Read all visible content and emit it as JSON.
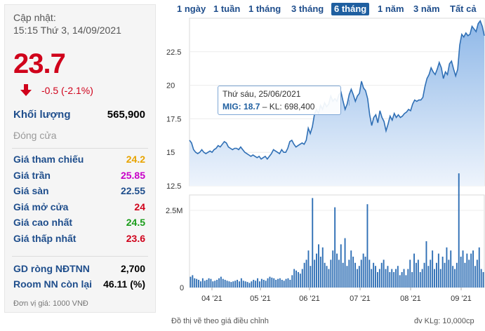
{
  "panel": {
    "updated_label": "Cập nhật:",
    "updated_time": "15:15 Thứ 3, 14/09/2021",
    "price": "23.7",
    "change": "-0.5 (-2.1%)",
    "volume_label": "Khối lượng",
    "volume_value": "565,900",
    "close_label": "Đóng cửa",
    "rows": [
      {
        "label": "Giá tham chiếu",
        "value": "24.2",
        "color": "#e8a400"
      },
      {
        "label": "Giá trần",
        "value": "25.85",
        "color": "#c800c8"
      },
      {
        "label": "Giá sàn",
        "value": "22.55",
        "color": "#1f4e8c"
      },
      {
        "label": "Giá mở cửa",
        "value": "24",
        "color": "#d0021b"
      },
      {
        "label": "Giá cao nhất",
        "value": "24.5",
        "color": "#1a9c1a"
      },
      {
        "label": "Giá thấp nhất",
        "value": "23.6",
        "color": "#d0021b"
      }
    ],
    "foreign_net_label": "GD ròng NĐTNN",
    "foreign_net_value": "2,700",
    "room_label": "Room NN còn lại",
    "room_value": "46.11 (%)",
    "unit_note": "Đơn vị giá: 1000 VNĐ"
  },
  "tabs": [
    {
      "label": "1 ngày",
      "active": false
    },
    {
      "label": "1 tuần",
      "active": false
    },
    {
      "label": "1 tháng",
      "active": false
    },
    {
      "label": "3 tháng",
      "active": false
    },
    {
      "label": "6 tháng",
      "active": true
    },
    {
      "label": "1 năm",
      "active": false
    },
    {
      "label": "3 năm",
      "active": false
    },
    {
      "label": "Tất cả",
      "active": false
    }
  ],
  "tooltip": {
    "date": "Thứ sáu, 25/06/2021",
    "symbol": "MIG:",
    "price": "18.7",
    "volume": "– KL: 698,400"
  },
  "footer": {
    "adjusted_note": "Đồ thị vẽ theo giá điều chỉnh",
    "volume_unit": "đv KLg: 10,000cp"
  },
  "chart_data": {
    "type": "area",
    "x_tick_labels": [
      "04 '21",
      "05 '21",
      "06 '21",
      "07 '21",
      "08 '21",
      "09 '21"
    ],
    "price_axis": {
      "ticks": [
        "12.5",
        "15",
        "17.5",
        "20",
        "22.5"
      ],
      "ylim": [
        12.5,
        25
      ]
    },
    "volume_axis": {
      "ticks": [
        "0",
        "2.5M"
      ],
      "ylim": [
        0,
        3000000
      ]
    },
    "colors": {
      "line": "#2f6fb5",
      "fill_top": "#8fb8e8",
      "fill_bottom": "#eef4fc",
      "volume": "#2f6fb5"
    },
    "price": [
      15.9,
      15.7,
      15.2,
      15.0,
      14.9,
      15.0,
      15.2,
      15.0,
      14.9,
      15.0,
      15.1,
      15.0,
      15.2,
      15.3,
      15.5,
      15.4,
      15.6,
      15.8,
      15.7,
      15.4,
      15.3,
      15.2,
      15.3,
      15.3,
      15.2,
      15.4,
      15.2,
      15.0,
      14.9,
      14.8,
      14.7,
      14.8,
      14.7,
      14.6,
      14.7,
      14.5,
      14.6,
      14.7,
      14.5,
      14.7,
      14.9,
      15.2,
      15.1,
      15.0,
      14.9,
      15.2,
      15.0,
      15.0,
      15.3,
      15.8,
      15.9,
      15.6,
      15.4,
      15.5,
      15.6,
      15.7,
      15.6,
      15.9,
      16.8,
      16.4,
      16.9,
      17.8,
      18.2,
      17.9,
      18.5,
      18.2,
      18.7,
      18.4,
      18.6,
      19.2,
      18.8,
      19.0,
      18.8,
      19.3,
      19.5,
      18.8,
      18.2,
      18.6,
      19.3,
      19.7,
      19.3,
      18.8,
      19.2,
      19.4,
      20.3,
      19.8,
      19.6,
      19.0,
      17.8,
      17.0,
      17.6,
      17.8,
      17.2,
      18.1,
      17.6,
      17.3,
      16.6,
      17.1,
      17.7,
      17.4,
      17.9,
      17.6,
      17.8,
      17.6,
      17.7,
      17.9,
      18.0,
      18.2,
      18.1,
      18.6,
      18.9,
      18.8,
      18.9,
      18.9,
      19.1,
      19.9,
      20.5,
      20.8,
      21.3,
      21.0,
      20.8,
      21.2,
      21.7,
      21.3,
      20.5,
      21.0,
      20.8,
      21.6,
      21.8,
      21.2,
      20.7,
      21.2,
      23.0,
      23.8,
      23.6,
      23.9,
      23.7,
      23.8,
      24.4,
      24.2,
      24.0,
      24.6,
      24.8,
      24.4,
      23.7
    ],
    "volume_millions": [
      0.35,
      0.4,
      0.3,
      0.28,
      0.25,
      0.2,
      0.3,
      0.22,
      0.25,
      0.3,
      0.28,
      0.2,
      0.22,
      0.25,
      0.3,
      0.35,
      0.28,
      0.25,
      0.22,
      0.2,
      0.18,
      0.2,
      0.22,
      0.25,
      0.2,
      0.3,
      0.22,
      0.2,
      0.18,
      0.15,
      0.2,
      0.25,
      0.22,
      0.3,
      0.2,
      0.28,
      0.25,
      0.22,
      0.3,
      0.35,
      0.32,
      0.3,
      0.25,
      0.28,
      0.3,
      0.25,
      0.22,
      0.28,
      0.3,
      0.25,
      0.4,
      0.6,
      0.55,
      0.5,
      0.45,
      0.6,
      0.8,
      0.9,
      1.2,
      0.7,
      2.9,
      0.9,
      1.1,
      1.4,
      1.0,
      1.3,
      0.8,
      0.7,
      0.6,
      0.9,
      1.2,
      2.6,
      1.1,
      0.9,
      1.4,
      0.8,
      1.6,
      0.7,
      0.9,
      1.2,
      1.0,
      0.8,
      0.6,
      0.7,
      0.9,
      1.1,
      1.0,
      2.7,
      0.9,
      0.6,
      0.8,
      0.7,
      0.5,
      0.6,
      0.8,
      0.9,
      0.6,
      0.7,
      0.5,
      0.6,
      0.5,
      0.6,
      0.7,
      0.4,
      0.5,
      0.6,
      0.4,
      0.6,
      0.9,
      0.5,
      1.1,
      0.8,
      0.9,
      0.5,
      0.6,
      0.8,
      1.5,
      0.7,
      0.9,
      1.2,
      0.6,
      0.8,
      1.1,
      0.6,
      1.0,
      0.8,
      1.3,
      0.9,
      1.2,
      0.7,
      0.6,
      0.8,
      3.7,
      1.0,
      1.2,
      0.8,
      1.1,
      0.9,
      1.1,
      1.2,
      0.7,
      0.9,
      1.3,
      0.6,
      0.5
    ]
  }
}
